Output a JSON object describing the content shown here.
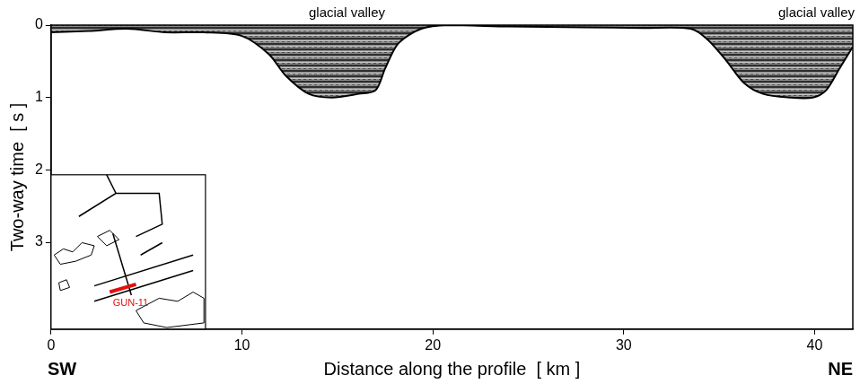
{
  "chart_data": {
    "type": "area",
    "x_label": "Distance along the profile  [ km ]",
    "y_label": "Two-way time  [ s ]",
    "x_ends": [
      "SW",
      "NE"
    ],
    "x": [
      0,
      2,
      4,
      6,
      8,
      10,
      11.4,
      12.3,
      13.5,
      14.7,
      16.1,
      17,
      17.5,
      18.2,
      19.4,
      20.8,
      24,
      28,
      31,
      33.5,
      34.4,
      35.4,
      36.3,
      37.3,
      38.7,
      39.9,
      40.6,
      41.3,
      42
    ],
    "values": [
      0.1,
      0.08,
      0.05,
      0.1,
      0.1,
      0.15,
      0.4,
      0.7,
      0.95,
      1.0,
      0.95,
      0.9,
      0.6,
      0.25,
      0.05,
      0.0,
      0.02,
      0.03,
      0.04,
      0.05,
      0.2,
      0.5,
      0.8,
      0.95,
      1.0,
      1.0,
      0.9,
      0.6,
      0.3
    ],
    "color": "#000000",
    "xlim": [
      0,
      42
    ],
    "xticks": [
      0,
      10,
      20,
      30,
      40
    ],
    "ylim": [
      4.2,
      0
    ],
    "yticks": [
      0,
      1,
      2,
      3
    ],
    "grid": false,
    "annotations": [
      {
        "text": "glacial valley",
        "x": 15.5
      },
      {
        "text": "glacial valley",
        "x": 41.2
      }
    ],
    "inset_label": "GUN-11"
  }
}
